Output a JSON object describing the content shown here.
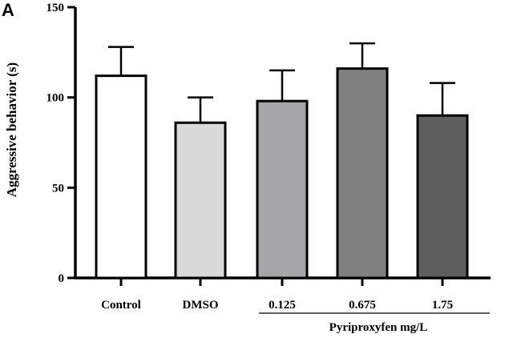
{
  "chart_data": {
    "type": "bar",
    "panel_label": "A",
    "ylabel": "Aggressive behavior (s)",
    "ylim": [
      0,
      150
    ],
    "yticks": [
      0,
      50,
      100,
      150
    ],
    "categories": [
      "Control",
      "DMSO",
      "0.125",
      "0.675",
      "1.75"
    ],
    "values": [
      112,
      86,
      98,
      116,
      90
    ],
    "errors": [
      16,
      14,
      17,
      14,
      18
    ],
    "colors": [
      "#ffffff",
      "#d9d9d9",
      "#a6a6a8",
      "#808080",
      "#5e5e5e"
    ],
    "group_label": "Pyriproxyfen mg/L",
    "grid": false
  }
}
